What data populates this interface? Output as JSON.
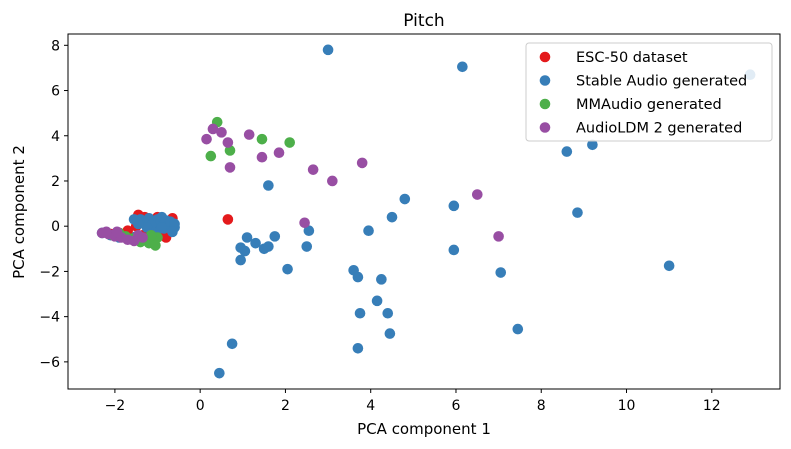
{
  "chart_data": {
    "type": "scatter",
    "title": "Pitch",
    "xlabel": "PCA component 1",
    "ylabel": "PCA component 2",
    "xlim": [
      -3.1,
      13.6
    ],
    "ylim": [
      -7.2,
      8.5
    ],
    "xticks": [
      -2,
      0,
      2,
      4,
      6,
      8,
      10,
      12
    ],
    "xtick_labels": [
      "−2",
      "0",
      "2",
      "4",
      "6",
      "8",
      "10",
      "12"
    ],
    "yticks": [
      -6,
      -4,
      -2,
      0,
      2,
      4,
      6,
      8
    ],
    "ytick_labels": [
      "−6",
      "−4",
      "−2",
      "0",
      "2",
      "4",
      "6",
      "8"
    ],
    "grid": false,
    "legend_position": "top-right",
    "series": [
      {
        "name": "ESC-50 dataset",
        "color": "#e41a1c",
        "points": [
          [
            -1.9,
            -0.3
          ],
          [
            -1.7,
            -0.2
          ],
          [
            -1.5,
            0.0
          ],
          [
            -1.4,
            0.2
          ],
          [
            -1.45,
            0.5
          ],
          [
            -1.3,
            0.4
          ],
          [
            -1.2,
            0.3
          ],
          [
            -1.1,
            0.1
          ],
          [
            -1.0,
            0.4
          ],
          [
            -0.9,
            0.3
          ],
          [
            -0.8,
            0.2
          ],
          [
            -0.7,
            0.1
          ],
          [
            -0.65,
            0.35
          ],
          [
            -0.8,
            -0.5
          ],
          [
            -1.2,
            -0.1
          ],
          [
            -1.35,
            -0.4
          ],
          [
            -1.55,
            -0.5
          ],
          [
            -2.1,
            -0.35
          ],
          [
            -1.0,
            0.0
          ],
          [
            -0.9,
            -0.2
          ],
          [
            0.65,
            0.3
          ]
        ]
      },
      {
        "name": "Stable Audio generated",
        "color": "#377eb8",
        "points": [
          [
            3.0,
            7.8
          ],
          [
            6.15,
            7.05
          ],
          [
            12.9,
            6.7
          ],
          [
            8.6,
            3.3
          ],
          [
            9.2,
            3.6
          ],
          [
            1.6,
            1.8
          ],
          [
            4.8,
            1.2
          ],
          [
            5.95,
            0.9
          ],
          [
            4.5,
            0.4
          ],
          [
            8.85,
            0.6
          ],
          [
            2.55,
            -0.2
          ],
          [
            3.95,
            -0.2
          ],
          [
            1.75,
            -0.45
          ],
          [
            1.1,
            -0.5
          ],
          [
            1.3,
            -0.75
          ],
          [
            0.95,
            -0.95
          ],
          [
            1.05,
            -1.1
          ],
          [
            1.6,
            -0.9
          ],
          [
            1.5,
            -1.0
          ],
          [
            0.95,
            -1.5
          ],
          [
            2.5,
            -0.9
          ],
          [
            5.95,
            -1.05
          ],
          [
            2.05,
            -1.9
          ],
          [
            3.6,
            -1.95
          ],
          [
            3.7,
            -2.25
          ],
          [
            4.25,
            -2.35
          ],
          [
            7.05,
            -2.05
          ],
          [
            11.0,
            -1.75
          ],
          [
            4.15,
            -3.3
          ],
          [
            3.75,
            -3.85
          ],
          [
            4.4,
            -3.85
          ],
          [
            4.45,
            -4.75
          ],
          [
            7.45,
            -4.55
          ],
          [
            0.75,
            -5.2
          ],
          [
            3.7,
            -5.4
          ],
          [
            0.45,
            -6.5
          ],
          [
            -2.3,
            -0.3
          ],
          [
            -2.1,
            -0.4
          ],
          [
            -1.9,
            -0.5
          ],
          [
            -1.7,
            -0.55
          ],
          [
            -1.5,
            -0.45
          ],
          [
            -1.4,
            0.3
          ],
          [
            -1.3,
            0.2
          ],
          [
            -1.2,
            0.35
          ],
          [
            -1.1,
            0.2
          ],
          [
            -1.0,
            0.3
          ],
          [
            -0.95,
            0.1
          ],
          [
            -0.9,
            0.4
          ],
          [
            -0.85,
            -0.1
          ],
          [
            -0.8,
            0.25
          ],
          [
            -0.75,
            0.05
          ],
          [
            -0.7,
            0.2
          ],
          [
            -0.6,
            -0.05
          ],
          [
            -0.6,
            0.1
          ],
          [
            -0.65,
            -0.25
          ],
          [
            -1.0,
            -0.15
          ],
          [
            -1.15,
            0.05
          ],
          [
            -1.25,
            -0.05
          ],
          [
            -1.45,
            0.1
          ],
          [
            -1.55,
            0.3
          ],
          [
            -0.9,
            -0.05
          ]
        ]
      },
      {
        "name": "MMAudio generated",
        "color": "#4daf4a",
        "points": [
          [
            0.4,
            4.6
          ],
          [
            1.45,
            3.85
          ],
          [
            2.1,
            3.7
          ],
          [
            0.7,
            3.35
          ],
          [
            0.25,
            3.1
          ],
          [
            -1.4,
            -0.7
          ],
          [
            -1.2,
            -0.75
          ],
          [
            -1.1,
            -0.65
          ],
          [
            -1.0,
            -0.5
          ],
          [
            -1.05,
            -0.85
          ],
          [
            -1.3,
            -0.6
          ],
          [
            -1.6,
            -0.55
          ],
          [
            -1.75,
            -0.45
          ],
          [
            -1.9,
            -0.3
          ],
          [
            -2.05,
            -0.4
          ],
          [
            -1.15,
            -0.4
          ]
        ]
      },
      {
        "name": "AudioLDM 2 generated",
        "color": "#984ea3",
        "points": [
          [
            0.3,
            4.3
          ],
          [
            0.5,
            4.15
          ],
          [
            1.15,
            4.05
          ],
          [
            0.15,
            3.85
          ],
          [
            0.65,
            3.7
          ],
          [
            1.85,
            3.25
          ],
          [
            1.45,
            3.05
          ],
          [
            3.8,
            2.8
          ],
          [
            0.7,
            2.6
          ],
          [
            2.65,
            2.5
          ],
          [
            3.1,
            2.0
          ],
          [
            6.5,
            1.4
          ],
          [
            2.45,
            0.15
          ],
          [
            7.0,
            -0.45
          ],
          [
            -2.3,
            -0.3
          ],
          [
            -2.15,
            -0.35
          ],
          [
            -2.0,
            -0.45
          ],
          [
            -1.85,
            -0.5
          ],
          [
            -1.7,
            -0.6
          ],
          [
            -1.55,
            -0.65
          ],
          [
            -1.45,
            -0.4
          ],
          [
            -1.35,
            -0.5
          ],
          [
            -2.2,
            -0.25
          ],
          [
            -1.95,
            -0.25
          ]
        ]
      }
    ]
  }
}
